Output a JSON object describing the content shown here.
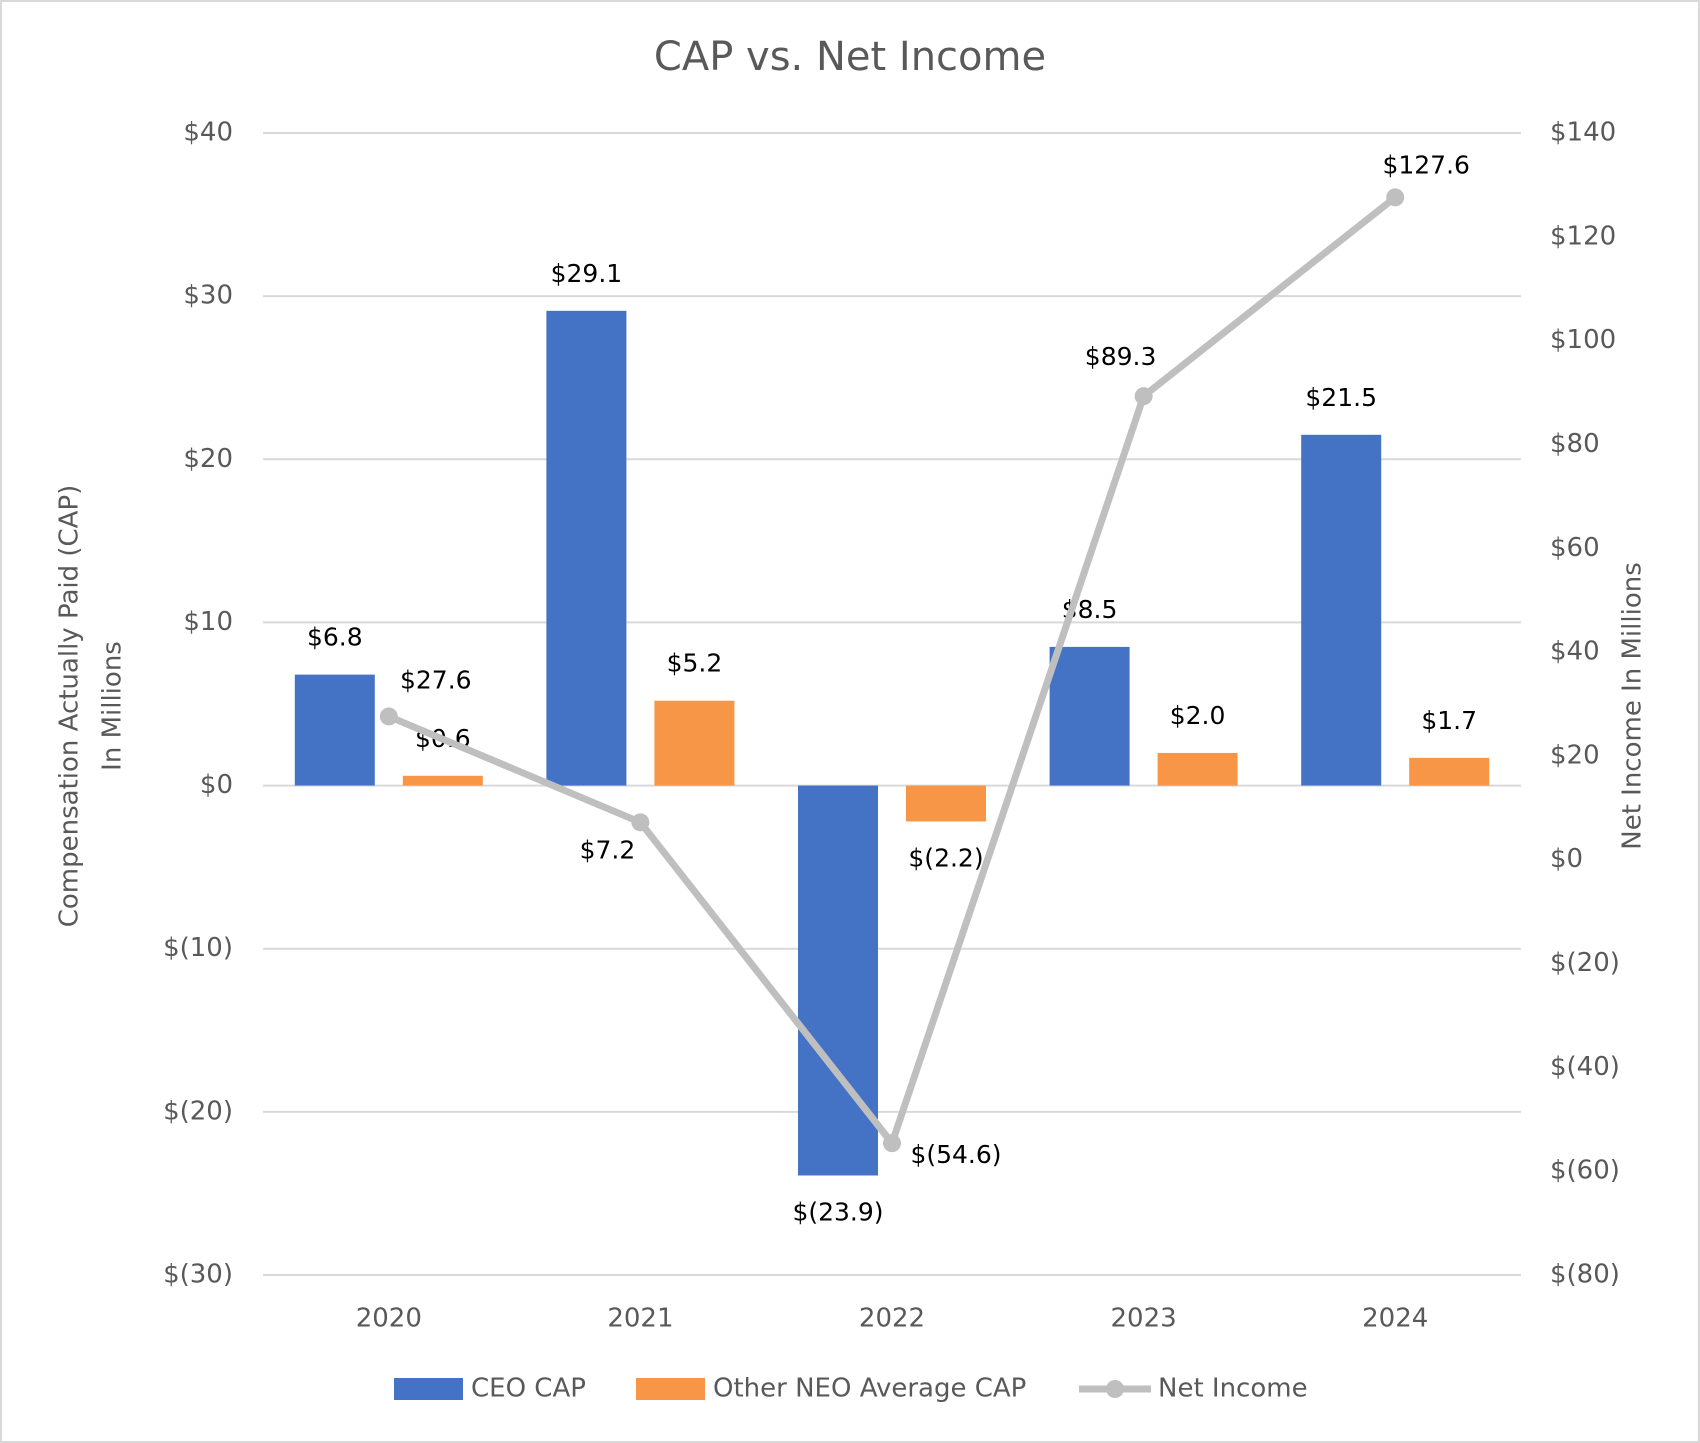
{
  "chart_data": {
    "type": "bar",
    "title": "CAP vs. Net Income",
    "categories": [
      "2020",
      "2021",
      "2022",
      "2023",
      "2024"
    ],
    "series": [
      {
        "name": "CEO CAP",
        "color": "#4472c4",
        "values": [
          6.8,
          29.1,
          -23.9,
          8.5,
          21.5
        ],
        "value_labels": [
          "$6.8",
          "$29.1",
          "$(23.9)",
          "$8.5",
          "$21.5"
        ]
      },
      {
        "name": "Other NEO Average CAP",
        "color": "#f79646",
        "values": [
          0.6,
          5.2,
          -2.2,
          2.0,
          1.7
        ],
        "value_labels": [
          "$0.6",
          "$5.2",
          "$(2.2)",
          "$2.0",
          "$1.7"
        ]
      },
      {
        "name": "Net Income",
        "type": "line",
        "axis": "y2",
        "color": "#bfbfbf",
        "values": [
          27.6,
          7.2,
          -54.6,
          89.3,
          127.6
        ],
        "value_labels": [
          "$27.6",
          "$7.2",
          "$(54.6)",
          "$89.3",
          "$127.6"
        ]
      }
    ],
    "ylabel": [
      "Compensation Actually Paid (CAP)",
      "In Millions"
    ],
    "y2label": "Net Income In Millions",
    "ylim": [
      -30,
      40
    ],
    "yticks": [
      {
        "value": -30,
        "label": "$(30)"
      },
      {
        "value": -20,
        "label": "$(20)"
      },
      {
        "value": -10,
        "label": "$(10)"
      },
      {
        "value": 0,
        "label": "$0"
      },
      {
        "value": 10,
        "label": "$10"
      },
      {
        "value": 20,
        "label": "$20"
      },
      {
        "value": 30,
        "label": "$30"
      },
      {
        "value": 40,
        "label": "$40"
      }
    ],
    "y2lim": [
      -80,
      140
    ],
    "y2ticks": [
      {
        "value": -80,
        "label": "$(80)"
      },
      {
        "value": -60,
        "label": "$(60)"
      },
      {
        "value": -40,
        "label": "$(40)"
      },
      {
        "value": -20,
        "label": "$(20)"
      },
      {
        "value": 0,
        "label": "$0"
      },
      {
        "value": 20,
        "label": "$20"
      },
      {
        "value": 40,
        "label": "$40"
      },
      {
        "value": 60,
        "label": "$60"
      },
      {
        "value": 80,
        "label": "$80"
      },
      {
        "value": 100,
        "label": "$100"
      },
      {
        "value": 120,
        "label": "$120"
      },
      {
        "value": 140,
        "label": "$140"
      }
    ],
    "grid": true,
    "legend": "bottom"
  }
}
